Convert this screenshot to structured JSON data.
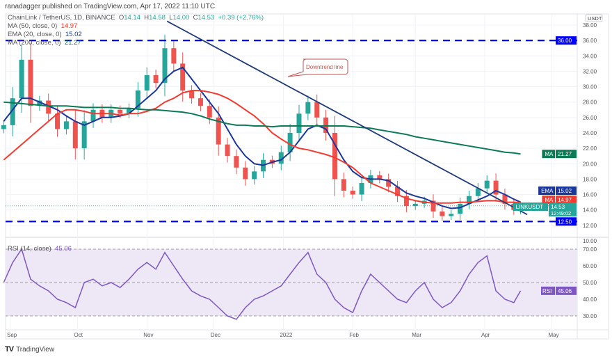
{
  "header": {
    "published": "ranadagger published on TradingView.com, Apr 17, 2022 11:10 UTC"
  },
  "legend": {
    "symbol": "ChainLink / TetherUS, 1D, BINANCE",
    "o_label": "O",
    "o": "14.14",
    "h_label": "H",
    "h": "14.58",
    "l_label": "L",
    "l": "14.00",
    "c_label": "C",
    "c": "14.53",
    "change": "+0.39 (+2.76%)",
    "ma50": "MA (50, close, 0)",
    "ma50_val": "14.97",
    "ema20": "EMA (20, close, 0)",
    "ema20_val": "15.02",
    "ma200": "MA (200, close, 0)",
    "ma200_val": "21.27",
    "rsi": "RSI (14, close)",
    "rsi_val": "45.06"
  },
  "footer": {
    "brand": "TradingView"
  },
  "colors": {
    "up": "#26a69a",
    "down": "#ef5350",
    "ema": "#1a3799",
    "ma50": "#f23b2e",
    "ma200": "#0b7a55",
    "level": "#0000ff",
    "trend": "#1f3b7a",
    "rsi": "#7e57c2",
    "rsi_bg": "#ede7f6"
  },
  "chart_data": [
    {
      "type": "candlestick",
      "currency_label": "USDT",
      "ylim": [
        10,
        38
      ],
      "y_ticks": [
        "10.00",
        "12.00",
        "14.00",
        "16.00",
        "18.00",
        "20.00",
        "22.00",
        "24.00",
        "26.00",
        "28.00",
        "30.00",
        "32.00",
        "34.00",
        "36.00",
        "38.00"
      ],
      "x_ticks": [
        "Sep",
        "Oct",
        "Nov",
        "Dec",
        "2022",
        "Feb",
        "Mar",
        "Apr",
        "May"
      ],
      "x_tick_dates": [
        "2021-09-01",
        "2021-10-01",
        "2021-11-01",
        "2021-12-01",
        "2022-01-01",
        "2022-02-01",
        "2022-03-01",
        "2022-04-01",
        "2022-05-01"
      ],
      "dates": [
        "2021-08-29",
        "2021-09-02",
        "2021-09-06",
        "2021-09-10",
        "2021-09-14",
        "2021-09-18",
        "2021-09-22",
        "2021-09-26",
        "2021-09-30",
        "2021-10-04",
        "2021-10-08",
        "2021-10-12",
        "2021-10-16",
        "2021-10-20",
        "2021-10-24",
        "2021-10-28",
        "2021-11-01",
        "2021-11-05",
        "2021-11-09",
        "2021-11-13",
        "2021-11-17",
        "2021-11-21",
        "2021-11-25",
        "2021-11-29",
        "2021-12-03",
        "2021-12-07",
        "2021-12-11",
        "2021-12-15",
        "2021-12-19",
        "2021-12-23",
        "2021-12-27",
        "2021-12-31",
        "2022-01-04",
        "2022-01-08",
        "2022-01-12",
        "2022-01-16",
        "2022-01-20",
        "2022-01-24",
        "2022-01-28",
        "2022-02-01",
        "2022-02-05",
        "2022-02-09",
        "2022-02-13",
        "2022-02-17",
        "2022-02-21",
        "2022-02-25",
        "2022-03-01",
        "2022-03-05",
        "2022-03-09",
        "2022-03-13",
        "2022-03-17",
        "2022-03-21",
        "2022-03-25",
        "2022-03-29",
        "2022-04-02",
        "2022-04-06",
        "2022-04-10",
        "2022-04-14",
        "2022-04-17"
      ],
      "close": [
        25.0,
        28.5,
        33.5,
        27.5,
        28.2,
        26.5,
        24.5,
        25.5,
        22.0,
        25.5,
        27.0,
        26.0,
        27.0,
        26.5,
        27.2,
        29.5,
        31.5,
        30.5,
        35.0,
        33.0,
        29.5,
        28.5,
        27.5,
        26.0,
        22.5,
        21.0,
        19.5,
        18.0,
        19.0,
        20.5,
        20.0,
        21.5,
        24.0,
        26.5,
        28.0,
        26.0,
        24.0,
        18.0,
        16.5,
        16.0,
        17.5,
        18.5,
        18.0,
        17.0,
        15.8,
        14.5,
        14.8,
        15.2,
        13.8,
        13.2,
        13.5,
        14.8,
        15.8,
        16.8,
        17.8,
        16.0,
        14.8,
        14.0,
        14.53
      ],
      "series": [
        {
          "name": "EMA (20, close, 0)",
          "key": "ema",
          "values": [
            25.5,
            27,
            28.5,
            28.5,
            28,
            27.5,
            27,
            26.2,
            25.5,
            25,
            25.5,
            26,
            26,
            26.2,
            26.5,
            27.5,
            28.5,
            29.5,
            31,
            32,
            32.5,
            31,
            29.5,
            28,
            26.5,
            24.5,
            22.5,
            21,
            20,
            19.8,
            20.2,
            20.5,
            21.5,
            23,
            24.5,
            25,
            24.5,
            22.5,
            20.5,
            19,
            18.2,
            18,
            18,
            17.8,
            17,
            16.2,
            15.8,
            15.5,
            15,
            14.5,
            14.2,
            14.3,
            14.8,
            15.3,
            15.8,
            16.5,
            16,
            15.4,
            15.02
          ]
        },
        {
          "name": "MA (50, close, 0)",
          "key": "ma50",
          "values": [
            20.5,
            21.5,
            22.5,
            23.5,
            24.5,
            25.5,
            26.5,
            27,
            27,
            26.8,
            26.5,
            26.5,
            26.5,
            26.3,
            26.5,
            26.5,
            26.8,
            27.2,
            28,
            28.5,
            29.2,
            29.5,
            29.5,
            29.3,
            29,
            28.5,
            27.8,
            27,
            26.2,
            25.2,
            24,
            23.2,
            22.5,
            22,
            21.8,
            21.5,
            21.2,
            20.8,
            20.2,
            19.5,
            18.5,
            17.5,
            17,
            16.5,
            16,
            15.5,
            15.2,
            15,
            14.9,
            14.9,
            14.9,
            15,
            15,
            15.1,
            15.2,
            15.2,
            15,
            15,
            14.97
          ]
        },
        {
          "name": "MA (200, close, 0)",
          "key": "ma200",
          "values": [
            28,
            27.9,
            27.8,
            27.7,
            27.6,
            27.5,
            27.5,
            27.5,
            27.4,
            27.3,
            27.3,
            27.3,
            27.3,
            27.2,
            27.2,
            27.1,
            27,
            27,
            26.9,
            26.8,
            26.7,
            26.5,
            26.2,
            25.8,
            25.5,
            25.2,
            25,
            25,
            24.9,
            24.9,
            24.8,
            24.9,
            24.9,
            24.9,
            24.9,
            24.9,
            24.9,
            24.9,
            24.9,
            24.8,
            24.7,
            24.6,
            24.4,
            24.2,
            24,
            23.8,
            23.5,
            23.3,
            23.1,
            22.9,
            22.7,
            22.5,
            22.3,
            22.1,
            21.9,
            21.7,
            21.5,
            21.4,
            21.27
          ]
        }
      ],
      "levels": [
        {
          "value": 36.0,
          "label": "36.00"
        },
        {
          "value": 12.5,
          "label": "12.50"
        }
      ],
      "trendline": {
        "from": [
          "2021-11-10",
          38.5
        ],
        "to": [
          "2022-04-20",
          13.4
        ],
        "annotation": "Downtrend line"
      },
      "badges": [
        {
          "tag": "MA",
          "value": "21.27",
          "price": 21.27,
          "key": "ma200"
        },
        {
          "tag": "EMA",
          "value": "15.02",
          "price": 15.02,
          "key": "ema"
        },
        {
          "tag": "MA",
          "value": "14.97",
          "price": 14.97,
          "key": "ma50"
        },
        {
          "tag": "LINKUSDT",
          "value": "14.53",
          "countdown": "12:49:02",
          "price": 14.53,
          "key": "up"
        }
      ]
    },
    {
      "type": "line",
      "title": "RSI (14, close)",
      "ylim": [
        25,
        75
      ],
      "y_ticks": [
        "30.00",
        "40.00",
        "50.00",
        "60.00",
        "70.00"
      ],
      "bands": [
        30,
        50,
        70
      ],
      "values": [
        50,
        62,
        70,
        52,
        48,
        45,
        40,
        38,
        35,
        50,
        52,
        48,
        50,
        47,
        52,
        58,
        62,
        58,
        68,
        60,
        52,
        45,
        42,
        40,
        35,
        30,
        28,
        35,
        40,
        42,
        45,
        48,
        55,
        62,
        68,
        55,
        50,
        40,
        35,
        32,
        45,
        55,
        50,
        45,
        40,
        38,
        45,
        50,
        40,
        35,
        38,
        45,
        55,
        62,
        66,
        45,
        40,
        38,
        45.06
      ],
      "badge": {
        "tag": "RSI",
        "value": "45.06"
      }
    }
  ]
}
